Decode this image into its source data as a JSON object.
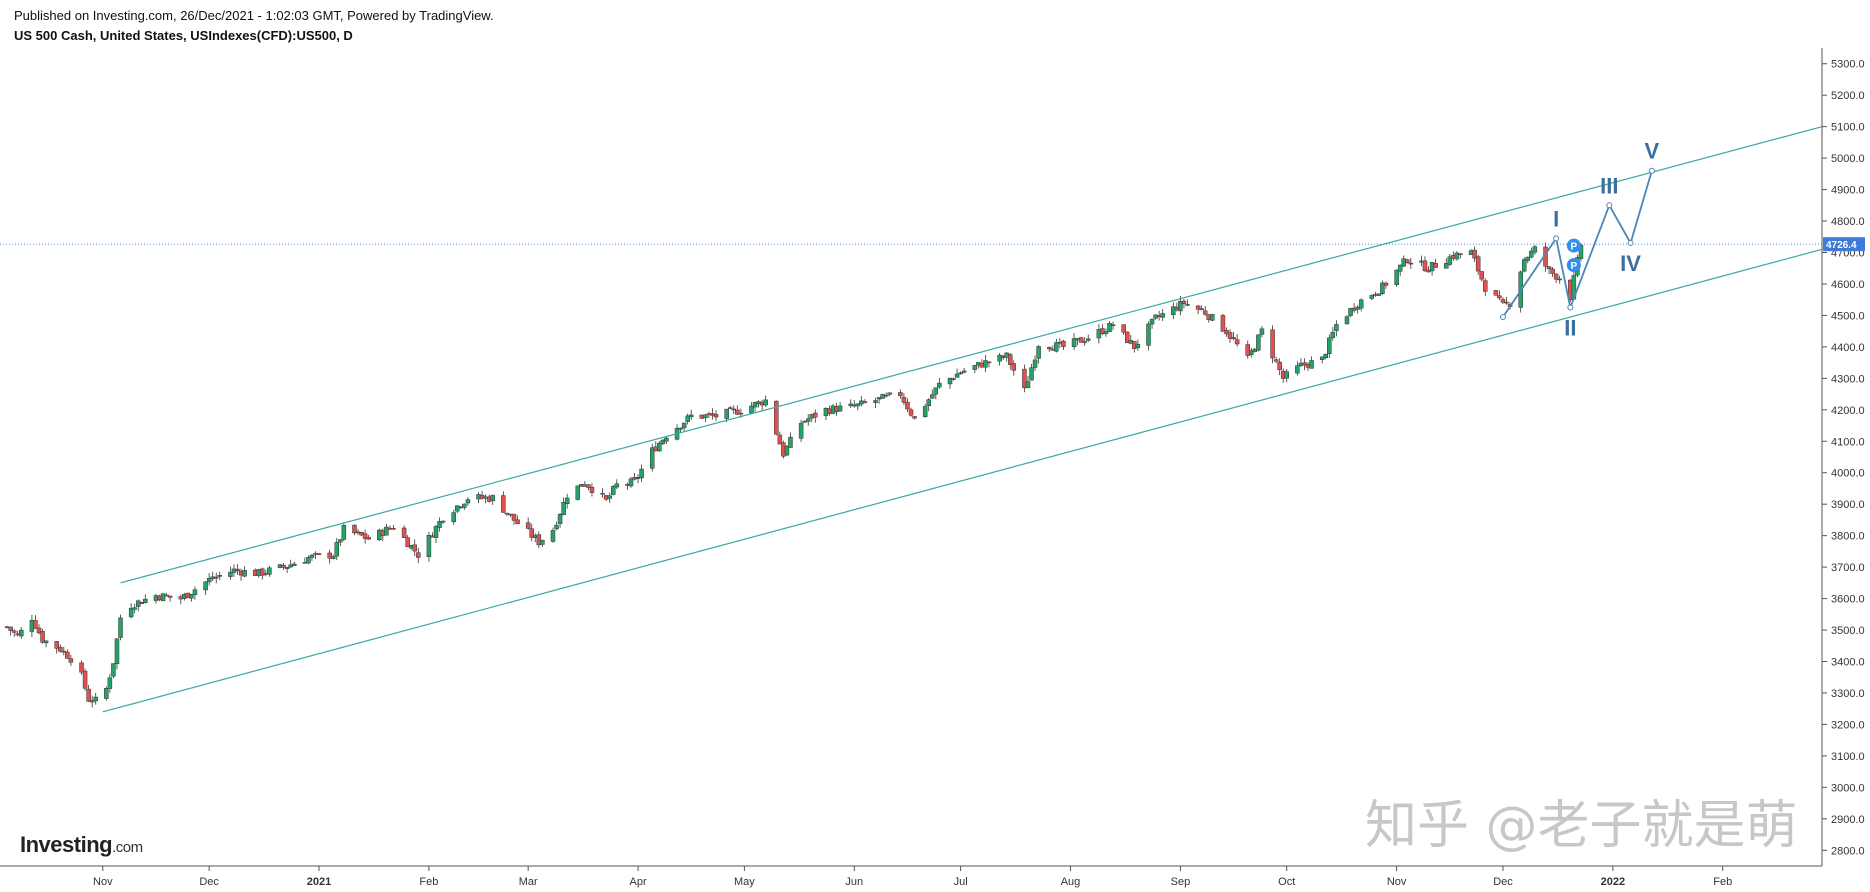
{
  "header": {
    "published": "Published on Investing.com, 26/Dec/2021 - 1:02:03 GMT, Powered by TradingView.",
    "instrument": "US 500 Cash, United States, USIndexes(CFD):US500, D"
  },
  "branding": {
    "logo_main": "Investing",
    "logo_suffix": ".com",
    "watermark": "知乎 @老子就是萌"
  },
  "colors": {
    "up": "#26a269",
    "down": "#e05050",
    "channel": "#3aa6a6",
    "wave": "#4a86b8",
    "wave_label": "#3d6f9c",
    "price_badge": "#3e7bd9",
    "marker": "#2f8ff0"
  },
  "chart_data": {
    "type": "candlestick",
    "title": "US 500 Cash, United States, USIndexes(CFD):US500, D",
    "ylim": [
      2750,
      5350
    ],
    "y_ticks": [
      2800,
      2900,
      3000,
      3100,
      3200,
      3300,
      3400,
      3500,
      3600,
      3700,
      3800,
      3900,
      4000,
      4100,
      4200,
      4300,
      4400,
      4500,
      4600,
      4700,
      4800,
      4900,
      5000,
      5100,
      5200,
      5300
    ],
    "y_tick_labels": [
      "2800.0",
      "2900.0",
      "3000.0",
      "3100.0",
      "3200.0",
      "3300.0",
      "3400.0",
      "3500.0",
      "3600.0",
      "3700.0",
      "3800.0",
      "3900.0",
      "4000.0",
      "4100.0",
      "4200.0",
      "4300.0",
      "4400.0",
      "4500.0",
      "4600.0",
      "4700.0",
      "4800.0",
      "4900.0",
      "5000.0",
      "5100.0",
      "5200.0",
      "5300.0"
    ],
    "x_labels": [
      "Nov",
      "Dec",
      "2021",
      "Feb",
      "Mar",
      "Apr",
      "May",
      "Jun",
      "Jul",
      "Aug",
      "Sep",
      "Oct",
      "Nov",
      "Dec",
      "2022",
      "Feb"
    ],
    "x_label_dates": [
      "2020-11-01",
      "2020-12-01",
      "2021-01-01",
      "2021-02-01",
      "2021-03-01",
      "2021-04-01",
      "2021-05-01",
      "2021-06-01",
      "2021-07-01",
      "2021-08-01",
      "2021-09-01",
      "2021-10-01",
      "2021-11-01",
      "2021-12-01",
      "2022-01-01",
      "2022-02-01"
    ],
    "x_range": [
      "2020-10-03",
      "2022-03-01"
    ],
    "current_price": "4726.4",
    "current_price_value": 4726.4,
    "close_path": [
      [
        "2020-10-05",
        3510
      ],
      [
        "2020-10-08",
        3480
      ],
      [
        "2020-10-12",
        3540
      ],
      [
        "2020-10-15",
        3470
      ],
      [
        "2020-10-20",
        3440
      ],
      [
        "2020-10-25",
        3390
      ],
      [
        "2020-10-28",
        3280
      ],
      [
        "2020-11-01",
        3270
      ],
      [
        "2020-11-04",
        3400
      ],
      [
        "2020-11-06",
        3540
      ],
      [
        "2020-11-09",
        3580
      ],
      [
        "2020-11-16",
        3610
      ],
      [
        "2020-11-23",
        3600
      ],
      [
        "2020-12-01",
        3660
      ],
      [
        "2020-12-08",
        3690
      ],
      [
        "2020-12-15",
        3680
      ],
      [
        "2020-12-22",
        3700
      ],
      [
        "2020-12-29",
        3730
      ],
      [
        "2021-01-05",
        3740
      ],
      [
        "2021-01-08",
        3820
      ],
      [
        "2021-01-15",
        3790
      ],
      [
        "2021-01-22",
        3830
      ],
      [
        "2021-01-29",
        3740
      ],
      [
        "2021-02-05",
        3860
      ],
      [
        "2021-02-12",
        3920
      ],
      [
        "2021-02-19",
        3920
      ],
      [
        "2021-02-25",
        3850
      ],
      [
        "2021-03-04",
        3780
      ],
      [
        "2021-03-08",
        3820
      ],
      [
        "2021-03-12",
        3930
      ],
      [
        "2021-03-17",
        3970
      ],
      [
        "2021-03-23",
        3910
      ],
      [
        "2021-03-26",
        3960
      ],
      [
        "2021-03-31",
        3970
      ],
      [
        "2021-04-05",
        4070
      ],
      [
        "2021-04-09",
        4120
      ],
      [
        "2021-04-16",
        4180
      ],
      [
        "2021-04-23",
        4180
      ],
      [
        "2021-04-30",
        4200
      ],
      [
        "2021-05-07",
        4230
      ],
      [
        "2021-05-12",
        4060
      ],
      [
        "2021-05-17",
        4160
      ],
      [
        "2021-05-24",
        4200
      ],
      [
        "2021-06-01",
        4210
      ],
      [
        "2021-06-07",
        4230
      ],
      [
        "2021-06-14",
        4250
      ],
      [
        "2021-06-18",
        4170
      ],
      [
        "2021-06-25",
        4280
      ],
      [
        "2021-07-01",
        4320
      ],
      [
        "2021-07-08",
        4350
      ],
      [
        "2021-07-14",
        4370
      ],
      [
        "2021-07-19",
        4260
      ],
      [
        "2021-07-23",
        4410
      ],
      [
        "2021-07-30",
        4400
      ],
      [
        "2021-08-06",
        4430
      ],
      [
        "2021-08-13",
        4470
      ],
      [
        "2021-08-19",
        4400
      ],
      [
        "2021-08-25",
        4490
      ],
      [
        "2021-09-02",
        4540
      ],
      [
        "2021-09-08",
        4510
      ],
      [
        "2021-09-14",
        4450
      ],
      [
        "2021-09-20",
        4360
      ],
      [
        "2021-09-24",
        4450
      ],
      [
        "2021-09-30",
        4300
      ],
      [
        "2021-10-05",
        4340
      ],
      [
        "2021-10-11",
        4360
      ],
      [
        "2021-10-15",
        4470
      ],
      [
        "2021-10-21",
        4540
      ],
      [
        "2021-10-28",
        4590
      ],
      [
        "2021-11-04",
        4680
      ],
      [
        "2021-11-10",
        4650
      ],
      [
        "2021-11-17",
        4690
      ],
      [
        "2021-11-22",
        4700
      ],
      [
        "2021-11-26",
        4590
      ],
      [
        "2021-12-01",
        4530
      ],
      [
        "2021-12-03",
        4540
      ],
      [
        "2021-12-07",
        4680
      ],
      [
        "2021-12-10",
        4710
      ],
      [
        "2021-12-14",
        4640
      ],
      [
        "2021-12-17",
        4620
      ],
      [
        "2021-12-20",
        4560
      ],
      [
        "2021-12-23",
        4726
      ]
    ],
    "channel_upper": [
      [
        "2020-11-06",
        3650
      ],
      [
        "2022-03-01",
        5100
      ]
    ],
    "channel_lower": [
      [
        "2020-11-01",
        3240
      ],
      [
        "2022-03-01",
        4710
      ]
    ],
    "wave_path": [
      {
        "date": "2021-12-01",
        "value": 4495
      },
      {
        "date": "2021-12-16",
        "value": 4745,
        "label": "I"
      },
      {
        "date": "2021-12-20",
        "value": 4525,
        "label": "II"
      },
      {
        "date": "2021-12-31",
        "value": 4850,
        "label": "III"
      },
      {
        "date": "2022-01-06",
        "value": 4730,
        "label": "IV"
      },
      {
        "date": "2022-01-12",
        "value": 4960,
        "label": "V"
      }
    ],
    "markers": [
      {
        "date": "2021-12-21",
        "value": 4722,
        "label": "P"
      },
      {
        "date": "2021-12-21",
        "value": 4660,
        "label": "P"
      }
    ],
    "grid": false,
    "legend": "none"
  }
}
